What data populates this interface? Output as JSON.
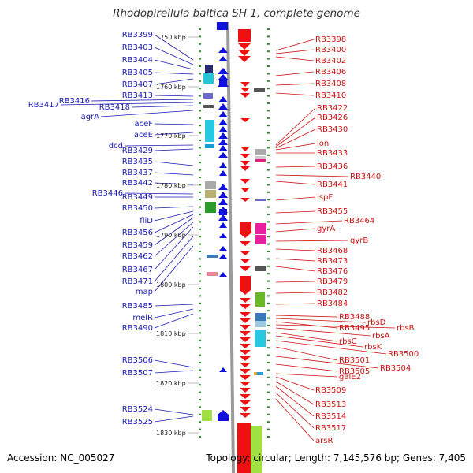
{
  "title": "Rhodopirellula baltica SH 1, complete genome",
  "footer": {
    "accession": "Accession: NC_005027",
    "stats": "Topology: circular; Length: 7,145,576 bp; Genes: 7,405"
  },
  "colors": {
    "left_label": "#1a1ab3",
    "right_label": "#cc1111",
    "forward": "#1010dd",
    "reverse": "#ee1111"
  },
  "scale_labels": [
    "1750 kbp",
    "1760 kbp",
    "1770 kbp",
    "1780 kbp",
    "1790 kbp",
    "1800 kbp",
    "1810 kbp",
    "1820 kbp",
    "1830 kbp"
  ],
  "left_labels": [
    "RB3399",
    "RB3403",
    "RB3404",
    "RB3405",
    "RB3407",
    "RB3413",
    "RB3416",
    "RB3417",
    "RB3418",
    "agrA",
    "aceF",
    "aceE",
    "dcd",
    "RB3429",
    "RB3435",
    "RB3437",
    "RB3442",
    "RB3446",
    "RB3449",
    "RB3450",
    "fliD",
    "RB3456",
    "RB3459",
    "RB3462",
    "RB3467",
    "RB3471",
    "map",
    "RB3485",
    "melR",
    "RB3490",
    "RB3506",
    "RB3507",
    "RB3524",
    "RB3525"
  ],
  "right_labels": [
    "RB3398",
    "RB3400",
    "RB3402",
    "RB3406",
    "RB3408",
    "RB3410",
    "RB3422",
    "RB3426",
    "RB3430",
    "lon",
    "RB3433",
    "RB3436",
    "RB3440",
    "RB3441",
    "ispF",
    "RB3455",
    "RB3464",
    "gyrA",
    "gyrB",
    "RB3468",
    "RB3473",
    "RB3476",
    "RB3479",
    "RB3482",
    "RB3484",
    "RB3488",
    "rbsD",
    "RB3495",
    "rbsB",
    "rbsA",
    "rbsC",
    "rbsK",
    "RB3500",
    "RB3501",
    "RB3504",
    "RB3505",
    "galE2",
    "RB3509",
    "RB3513",
    "RB3514",
    "RB3517",
    "arsR"
  ]
}
